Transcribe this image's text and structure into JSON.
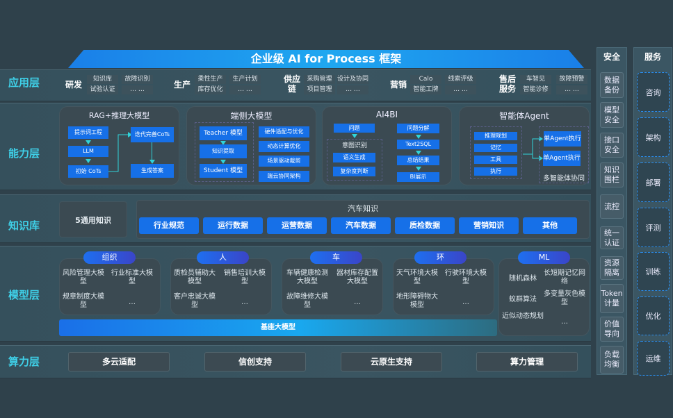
{
  "title": "企业级 AI for Process 框架",
  "layers": {
    "app": "应用层",
    "capability": "能力层",
    "knowledge": "知识库",
    "model": "模型层",
    "compute": "算力层"
  },
  "app": [
    {
      "name": "研发",
      "items": [
        "知识库",
        "故障识别",
        "试验认证",
        "… …"
      ]
    },
    {
      "name": "生产",
      "items": [
        "柔性生产",
        "生产计划",
        "库存优化",
        "… …"
      ]
    },
    {
      "name": "供应链",
      "items": [
        "采购管理",
        "设计及协同",
        "项目管理",
        "… …"
      ]
    },
    {
      "name": "营销",
      "items": [
        "Calo",
        "线索评级",
        "智能工牌",
        "… …"
      ]
    },
    {
      "name": "售后服务",
      "items": [
        "车智见",
        "故障预警",
        "智能诊修",
        "… …"
      ]
    }
  ],
  "capability": {
    "rag": {
      "title": "RAG+推理大模型",
      "steps": [
        "提示词工程",
        "LLM",
        "初始 CoTs",
        "迭代完善CoTs",
        "生成答案"
      ]
    },
    "edge": {
      "title": "端侧大模型",
      "left": [
        "Teacher 模型",
        "知识提取",
        "Student 模型"
      ],
      "right": [
        "硬件适配与优化",
        "动态计算优化",
        "场景驱动裁剪",
        "端云协同架构"
      ]
    },
    "ai4bi": {
      "title": "AI4BI",
      "question": "问题",
      "intent": "意图识别",
      "intent_items": [
        "语义生成",
        "复杂度判断"
      ],
      "flow": [
        "问题分解",
        "Text2SQL",
        "总结结果",
        "BI展示"
      ]
    },
    "agent": {
      "title": "智能体Agent",
      "modules": [
        "推理规划",
        "记忆",
        "工具",
        "执行"
      ],
      "exec": [
        "单Agent执行",
        "单Agent执行"
      ],
      "collab": "多智能体协同"
    }
  },
  "knowledge": {
    "general": "5通用知识",
    "auto_title": "汽车知识",
    "auto_items": [
      "行业规范",
      "运行数据",
      "运营数据",
      "汽车数据",
      "质检数据",
      "营销知识",
      "其他"
    ]
  },
  "model": {
    "groups": [
      {
        "name": "组织",
        "items": [
          "风险管理大模型",
          "行业标准大模型",
          "规章制度大模型",
          "…"
        ]
      },
      {
        "name": "人",
        "items": [
          "质检员辅助大模型",
          "销售培训大模型",
          "客户忠诚大模型",
          "…"
        ]
      },
      {
        "name": "车",
        "items": [
          "车辆健康检测大模型",
          "器材库存配置大模型",
          "故障维修大模型",
          "…"
        ]
      },
      {
        "name": "环",
        "items": [
          "天气环境大模型",
          "行驶环境大模型",
          "地形障碍物大模型",
          "…"
        ]
      },
      {
        "name": "ML",
        "items": [
          "随机森林",
          "长短期记忆网络",
          "蚁群算法",
          "多变量灰色模型",
          "近似动态规划",
          "…"
        ]
      }
    ],
    "base": "基座大模型"
  },
  "compute": [
    "多云适配",
    "信创支持",
    "云原生支持",
    "算力管理"
  ],
  "security": {
    "title": "安全",
    "items": [
      "数据备份",
      "模型安全",
      "接口安全",
      "知识围栏",
      "流控",
      "统一认证",
      "资源隔离",
      "Token计量",
      "价值导向",
      "负载均衡"
    ]
  },
  "services": {
    "title": "服务",
    "items": [
      "咨询",
      "架构",
      "部署",
      "评测",
      "训练",
      "优化",
      "运维"
    ]
  },
  "colors": {
    "accent": "#1670e8",
    "label": "#3fd0e8",
    "background": "#2f414b"
  }
}
